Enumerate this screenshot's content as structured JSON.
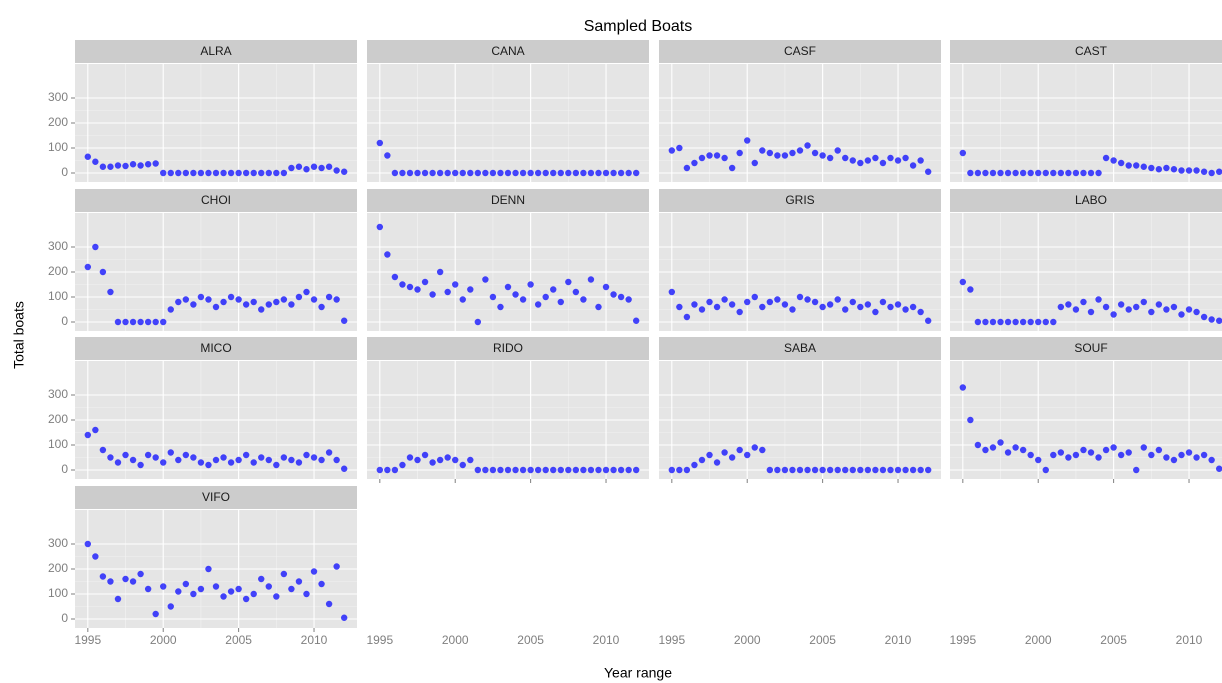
{
  "title": "Sampled Boats",
  "x_label": "Year range",
  "y_label": "Total boats",
  "chart_data": [
    {
      "type": "scatter",
      "title": "ALRA",
      "color": "#0000ff",
      "grid": true,
      "xlim": [
        1994.15,
        2012.85
      ],
      "ylim": [
        -36,
        436
      ],
      "xticks": [
        1995,
        2000,
        2005,
        2010
      ],
      "yticks": [
        0,
        100,
        200,
        300
      ],
      "x": [
        1995,
        1995.5,
        1996,
        1996.5,
        1997,
        1997.5,
        1998,
        1998.5,
        1999,
        1999.5,
        2000,
        2000.5,
        2001,
        2001.5,
        2002,
        2002.5,
        2003,
        2003.5,
        2004,
        2004.5,
        2005,
        2005.5,
        2006,
        2006.5,
        2007,
        2007.5,
        2008,
        2008.5,
        2009,
        2009.5,
        2010,
        2010.5,
        2011,
        2011.5,
        2012
      ],
      "values": [
        65,
        45,
        25,
        25,
        30,
        28,
        35,
        30,
        35,
        38,
        0,
        0,
        0,
        0,
        0,
        0,
        0,
        0,
        0,
        0,
        0,
        0,
        0,
        0,
        0,
        0,
        0,
        20,
        25,
        15,
        25,
        20,
        25,
        10,
        5
      ]
    },
    {
      "type": "scatter",
      "title": "CANA",
      "color": "#0000ff",
      "grid": true,
      "xlim": [
        1994.15,
        2012.85
      ],
      "ylim": [
        -36,
        436
      ],
      "xticks": [
        1995,
        2000,
        2005,
        2010
      ],
      "yticks": [
        0,
        100,
        200,
        300
      ],
      "x": [
        1995,
        1995.5,
        1996,
        1996.5,
        1997,
        1997.5,
        1998,
        1998.5,
        1999,
        1999.5,
        2000,
        2000.5,
        2001,
        2001.5,
        2002,
        2002.5,
        2003,
        2003.5,
        2004,
        2004.5,
        2005,
        2005.5,
        2006,
        2006.5,
        2007,
        2007.5,
        2008,
        2008.5,
        2009,
        2009.5,
        2010,
        2010.5,
        2011,
        2011.5,
        2012
      ],
      "values": [
        120,
        70,
        0,
        0,
        0,
        0,
        0,
        0,
        0,
        0,
        0,
        0,
        0,
        0,
        0,
        0,
        0,
        0,
        0,
        0,
        0,
        0,
        0,
        0,
        0,
        0,
        0,
        0,
        0,
        0,
        0,
        0,
        0,
        0,
        0
      ]
    },
    {
      "type": "scatter",
      "title": "CASF",
      "color": "#0000ff",
      "grid": true,
      "xlim": [
        1994.15,
        2012.85
      ],
      "ylim": [
        -36,
        436
      ],
      "xticks": [
        1995,
        2000,
        2005,
        2010
      ],
      "yticks": [
        0,
        100,
        200,
        300
      ],
      "x": [
        1995,
        1995.5,
        1996,
        1996.5,
        1997,
        1997.5,
        1998,
        1998.5,
        1999,
        1999.5,
        2000,
        2000.5,
        2001,
        2001.5,
        2002,
        2002.5,
        2003,
        2003.5,
        2004,
        2004.5,
        2005,
        2005.5,
        2006,
        2006.5,
        2007,
        2007.5,
        2008,
        2008.5,
        2009,
        2009.5,
        2010,
        2010.5,
        2011,
        2011.5,
        2012
      ],
      "values": [
        90,
        100,
        20,
        40,
        60,
        70,
        70,
        60,
        20,
        80,
        130,
        40,
        90,
        80,
        70,
        70,
        80,
        90,
        110,
        80,
        70,
        60,
        90,
        60,
        50,
        40,
        50,
        60,
        40,
        60,
        50,
        60,
        30,
        50,
        5
      ]
    },
    {
      "type": "scatter",
      "title": "CAST",
      "color": "#0000ff",
      "grid": true,
      "xlim": [
        1994.15,
        2012.85
      ],
      "ylim": [
        -36,
        436
      ],
      "xticks": [
        1995,
        2000,
        2005,
        2010
      ],
      "yticks": [
        0,
        100,
        200,
        300
      ],
      "x": [
        1995,
        1995.5,
        1996,
        1996.5,
        1997,
        1997.5,
        1998,
        1998.5,
        1999,
        1999.5,
        2000,
        2000.5,
        2001,
        2001.5,
        2002,
        2002.5,
        2003,
        2003.5,
        2004,
        2004.5,
        2005,
        2005.5,
        2006,
        2006.5,
        2007,
        2007.5,
        2008,
        2008.5,
        2009,
        2009.5,
        2010,
        2010.5,
        2011,
        2011.5,
        2012
      ],
      "values": [
        80,
        0,
        0,
        0,
        0,
        0,
        0,
        0,
        0,
        0,
        0,
        0,
        0,
        0,
        0,
        0,
        0,
        0,
        0,
        60,
        50,
        40,
        30,
        30,
        25,
        20,
        15,
        20,
        15,
        10,
        10,
        10,
        5,
        0,
        5
      ]
    },
    {
      "type": "scatter",
      "title": "CHOI",
      "color": "#0000ff",
      "grid": true,
      "xlim": [
        1994.15,
        2012.85
      ],
      "ylim": [
        -36,
        436
      ],
      "xticks": [
        1995,
        2000,
        2005,
        2010
      ],
      "yticks": [
        0,
        100,
        200,
        300
      ],
      "x": [
        1995,
        1995.5,
        1996,
        1996.5,
        1997,
        1997.5,
        1998,
        1998.5,
        1999,
        1999.5,
        2000,
        2000.5,
        2001,
        2001.5,
        2002,
        2002.5,
        2003,
        2003.5,
        2004,
        2004.5,
        2005,
        2005.5,
        2006,
        2006.5,
        2007,
        2007.5,
        2008,
        2008.5,
        2009,
        2009.5,
        2010,
        2010.5,
        2011,
        2011.5,
        2012
      ],
      "values": [
        220,
        300,
        200,
        120,
        0,
        0,
        0,
        0,
        0,
        0,
        0,
        50,
        80,
        90,
        70,
        100,
        90,
        60,
        80,
        100,
        90,
        70,
        80,
        50,
        70,
        80,
        90,
        70,
        100,
        120,
        90,
        60,
        100,
        90,
        5
      ]
    },
    {
      "type": "scatter",
      "title": "DENN",
      "color": "#0000ff",
      "grid": true,
      "xlim": [
        1994.15,
        2012.85
      ],
      "ylim": [
        -36,
        436
      ],
      "xticks": [
        1995,
        2000,
        2005,
        2010
      ],
      "yticks": [
        0,
        100,
        200,
        300
      ],
      "x": [
        1995,
        1995.5,
        1996,
        1996.5,
        1997,
        1997.5,
        1998,
        1998.5,
        1999,
        1999.5,
        2000,
        2000.5,
        2001,
        2001.5,
        2002,
        2002.5,
        2003,
        2003.5,
        2004,
        2004.5,
        2005,
        2005.5,
        2006,
        2006.5,
        2007,
        2007.5,
        2008,
        2008.5,
        2009,
        2009.5,
        2010,
        2010.5,
        2011,
        2011.5,
        2012
      ],
      "values": [
        380,
        270,
        180,
        150,
        140,
        130,
        160,
        110,
        200,
        120,
        150,
        90,
        130,
        0,
        170,
        100,
        60,
        140,
        110,
        90,
        150,
        70,
        100,
        130,
        80,
        160,
        120,
        90,
        170,
        60,
        140,
        110,
        100,
        90,
        5
      ]
    },
    {
      "type": "scatter",
      "title": "GRIS",
      "color": "#0000ff",
      "grid": true,
      "xlim": [
        1994.15,
        2012.85
      ],
      "ylim": [
        -36,
        436
      ],
      "xticks": [
        1995,
        2000,
        2005,
        2010
      ],
      "yticks": [
        0,
        100,
        200,
        300
      ],
      "x": [
        1995,
        1995.5,
        1996,
        1996.5,
        1997,
        1997.5,
        1998,
        1998.5,
        1999,
        1999.5,
        2000,
        2000.5,
        2001,
        2001.5,
        2002,
        2002.5,
        2003,
        2003.5,
        2004,
        2004.5,
        2005,
        2005.5,
        2006,
        2006.5,
        2007,
        2007.5,
        2008,
        2008.5,
        2009,
        2009.5,
        2010,
        2010.5,
        2011,
        2011.5,
        2012
      ],
      "values": [
        120,
        60,
        20,
        70,
        50,
        80,
        60,
        90,
        70,
        40,
        80,
        100,
        60,
        80,
        90,
        70,
        50,
        100,
        90,
        80,
        60,
        70,
        90,
        50,
        80,
        60,
        70,
        40,
        80,
        60,
        70,
        50,
        60,
        40,
        5
      ]
    },
    {
      "type": "scatter",
      "title": "LABO",
      "color": "#0000ff",
      "grid": true,
      "xlim": [
        1994.15,
        2012.85
      ],
      "ylim": [
        -36,
        436
      ],
      "xticks": [
        1995,
        2000,
        2005,
        2010
      ],
      "yticks": [
        0,
        100,
        200,
        300
      ],
      "x": [
        1995,
        1995.5,
        1996,
        1996.5,
        1997,
        1997.5,
        1998,
        1998.5,
        1999,
        1999.5,
        2000,
        2000.5,
        2001,
        2001.5,
        2002,
        2002.5,
        2003,
        2003.5,
        2004,
        2004.5,
        2005,
        2005.5,
        2006,
        2006.5,
        2007,
        2007.5,
        2008,
        2008.5,
        2009,
        2009.5,
        2010,
        2010.5,
        2011,
        2011.5,
        2012
      ],
      "values": [
        160,
        130,
        0,
        0,
        0,
        0,
        0,
        0,
        0,
        0,
        0,
        0,
        0,
        60,
        70,
        50,
        80,
        40,
        90,
        60,
        30,
        70,
        50,
        60,
        80,
        40,
        70,
        50,
        60,
        30,
        50,
        40,
        20,
        10,
        5
      ]
    },
    {
      "type": "scatter",
      "title": "MICO",
      "color": "#0000ff",
      "grid": true,
      "xlim": [
        1994.15,
        2012.85
      ],
      "ylim": [
        -36,
        436
      ],
      "xticks": [
        1995,
        2000,
        2005,
        2010
      ],
      "yticks": [
        0,
        100,
        200,
        300
      ],
      "x": [
        1995,
        1995.5,
        1996,
        1996.5,
        1997,
        1997.5,
        1998,
        1998.5,
        1999,
        1999.5,
        2000,
        2000.5,
        2001,
        2001.5,
        2002,
        2002.5,
        2003,
        2003.5,
        2004,
        2004.5,
        2005,
        2005.5,
        2006,
        2006.5,
        2007,
        2007.5,
        2008,
        2008.5,
        2009,
        2009.5,
        2010,
        2010.5,
        2011,
        2011.5,
        2012
      ],
      "values": [
        140,
        160,
        80,
        50,
        30,
        60,
        40,
        20,
        60,
        50,
        30,
        70,
        40,
        60,
        50,
        30,
        20,
        40,
        50,
        30,
        40,
        60,
        30,
        50,
        40,
        20,
        50,
        40,
        30,
        60,
        50,
        40,
        70,
        40,
        5
      ]
    },
    {
      "type": "scatter",
      "title": "RIDO",
      "color": "#0000ff",
      "grid": true,
      "xlim": [
        1994.15,
        2012.85
      ],
      "ylim": [
        -36,
        436
      ],
      "xticks": [
        1995,
        2000,
        2005,
        2010
      ],
      "yticks": [
        0,
        100,
        200,
        300
      ],
      "x": [
        1995,
        1995.5,
        1996,
        1996.5,
        1997,
        1997.5,
        1998,
        1998.5,
        1999,
        1999.5,
        2000,
        2000.5,
        2001,
        2001.5,
        2002,
        2002.5,
        2003,
        2003.5,
        2004,
        2004.5,
        2005,
        2005.5,
        2006,
        2006.5,
        2007,
        2007.5,
        2008,
        2008.5,
        2009,
        2009.5,
        2010,
        2010.5,
        2011,
        2011.5,
        2012
      ],
      "values": [
        0,
        0,
        0,
        20,
        50,
        40,
        60,
        30,
        40,
        50,
        40,
        20,
        40,
        0,
        0,
        0,
        0,
        0,
        0,
        0,
        0,
        0,
        0,
        0,
        0,
        0,
        0,
        0,
        0,
        0,
        0,
        0,
        0,
        0,
        0
      ]
    },
    {
      "type": "scatter",
      "title": "SABA",
      "color": "#0000ff",
      "grid": true,
      "xlim": [
        1994.15,
        2012.85
      ],
      "ylim": [
        -36,
        436
      ],
      "xticks": [
        1995,
        2000,
        2005,
        2010
      ],
      "yticks": [
        0,
        100,
        200,
        300
      ],
      "x": [
        1995,
        1995.5,
        1996,
        1996.5,
        1997,
        1997.5,
        1998,
        1998.5,
        1999,
        1999.5,
        2000,
        2000.5,
        2001,
        2001.5,
        2002,
        2002.5,
        2003,
        2003.5,
        2004,
        2004.5,
        2005,
        2005.5,
        2006,
        2006.5,
        2007,
        2007.5,
        2008,
        2008.5,
        2009,
        2009.5,
        2010,
        2010.5,
        2011,
        2011.5,
        2012
      ],
      "values": [
        0,
        0,
        0,
        20,
        40,
        60,
        30,
        70,
        50,
        80,
        60,
        90,
        80,
        0,
        0,
        0,
        0,
        0,
        0,
        0,
        0,
        0,
        0,
        0,
        0,
        0,
        0,
        0,
        0,
        0,
        0,
        0,
        0,
        0,
        0
      ]
    },
    {
      "type": "scatter",
      "title": "SOUF",
      "color": "#0000ff",
      "grid": true,
      "xlim": [
        1994.15,
        2012.85
      ],
      "ylim": [
        -36,
        436
      ],
      "xticks": [
        1995,
        2000,
        2005,
        2010
      ],
      "yticks": [
        0,
        100,
        200,
        300
      ],
      "x": [
        1995,
        1995.5,
        1996,
        1996.5,
        1997,
        1997.5,
        1998,
        1998.5,
        1999,
        1999.5,
        2000,
        2000.5,
        2001,
        2001.5,
        2002,
        2002.5,
        2003,
        2003.5,
        2004,
        2004.5,
        2005,
        2005.5,
        2006,
        2006.5,
        2007,
        2007.5,
        2008,
        2008.5,
        2009,
        2009.5,
        2010,
        2010.5,
        2011,
        2011.5,
        2012
      ],
      "values": [
        330,
        200,
        100,
        80,
        90,
        110,
        70,
        90,
        80,
        60,
        40,
        0,
        60,
        70,
        50,
        60,
        80,
        70,
        50,
        80,
        90,
        60,
        70,
        0,
        90,
        60,
        80,
        50,
        40,
        60,
        70,
        50,
        60,
        40,
        5
      ]
    },
    {
      "type": "scatter",
      "title": "VIFO",
      "color": "#0000ff",
      "grid": true,
      "xlim": [
        1994.15,
        2012.85
      ],
      "ylim": [
        -36,
        436
      ],
      "xticks": [
        1995,
        2000,
        2005,
        2010
      ],
      "yticks": [
        0,
        100,
        200,
        300
      ],
      "x": [
        1995,
        1995.5,
        1996,
        1996.5,
        1997,
        1997.5,
        1998,
        1998.5,
        1999,
        1999.5,
        2000,
        2000.5,
        2001,
        2001.5,
        2002,
        2002.5,
        2003,
        2003.5,
        2004,
        2004.5,
        2005,
        2005.5,
        2006,
        2006.5,
        2007,
        2007.5,
        2008,
        2008.5,
        2009,
        2009.5,
        2010,
        2010.5,
        2011,
        2011.5,
        2012
      ],
      "values": [
        300,
        250,
        170,
        150,
        80,
        160,
        150,
        180,
        120,
        20,
        130,
        50,
        110,
        140,
        100,
        120,
        200,
        130,
        90,
        110,
        120,
        80,
        100,
        160,
        130,
        90,
        180,
        120,
        150,
        100,
        190,
        140,
        60,
        210,
        5
      ]
    }
  ]
}
